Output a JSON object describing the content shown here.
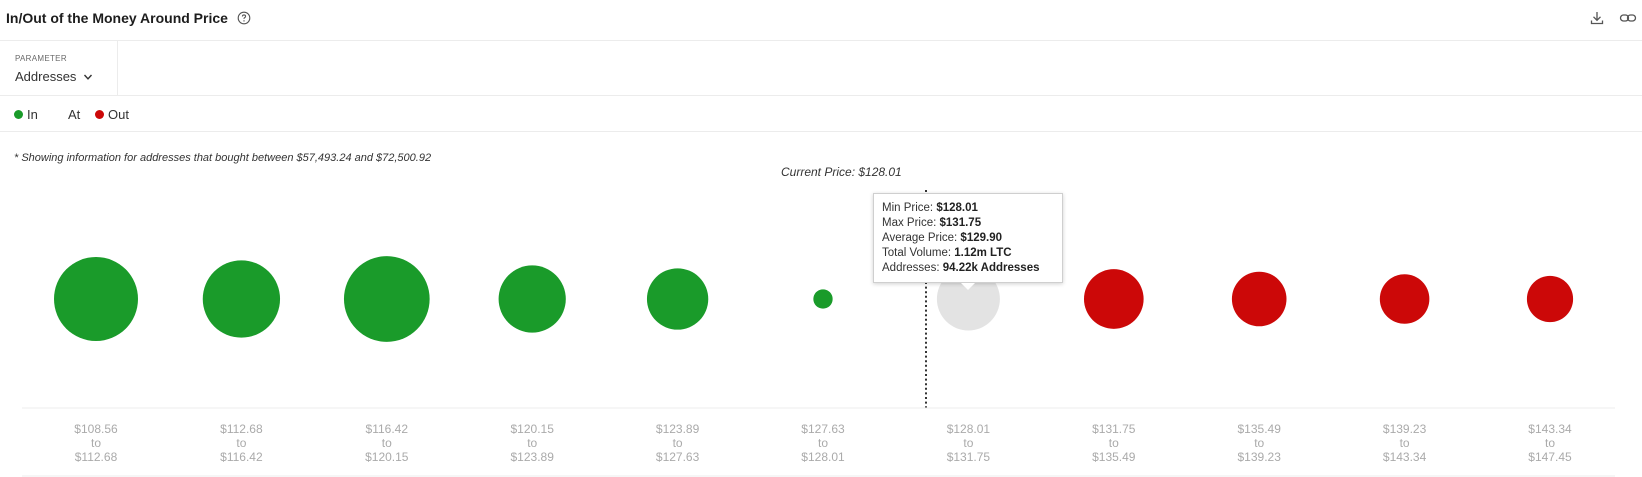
{
  "header": {
    "title": "In/Out of the Money Around Price",
    "help_icon": "question-circle-icon",
    "download_icon": "download-icon",
    "link_icon": "link-icon"
  },
  "parameter": {
    "label": "PARAMETER",
    "selected": "Addresses"
  },
  "legend": [
    {
      "label": "In",
      "color": "#1a9b2a"
    },
    {
      "label": "At",
      "color": ""
    },
    {
      "label": "Out",
      "color": "#cc0808"
    }
  ],
  "note": "* Showing information for addresses that bought between $57,493.24 and $72,500.92",
  "chart_data": {
    "type": "scatter",
    "current_price_label": "Current Price: $128.01",
    "bubbles": [
      {
        "from": "$108.56",
        "to": "$112.68",
        "status": "In"
      },
      {
        "from": "$112.68",
        "to": "$116.42",
        "status": "In"
      },
      {
        "from": "$116.42",
        "to": "$120.15",
        "status": "In"
      },
      {
        "from": "$120.15",
        "to": "$123.89",
        "status": "In"
      },
      {
        "from": "$123.89",
        "to": "$127.63",
        "status": "In"
      },
      {
        "from": "$127.63",
        "to": "$128.01",
        "status": "In"
      },
      {
        "from": "$128.01",
        "to": "$131.75",
        "status": "At"
      },
      {
        "from": "$131.75",
        "to": "$135.49",
        "status": "Out"
      },
      {
        "from": "$135.49",
        "to": "$139.23",
        "status": "Out"
      },
      {
        "from": "$139.23",
        "to": "$143.34",
        "status": "Out"
      },
      {
        "from": "$143.34",
        "to": "$147.45",
        "status": "Out"
      }
    ],
    "relative_size": [
      1.0,
      0.92,
      1.02,
      0.8,
      0.73,
      0.23,
      0.75,
      0.71,
      0.65,
      0.59,
      0.55
    ],
    "colors": {
      "In": "#1a9b2a",
      "At": "#e3e3e3",
      "Out": "#cc0808"
    },
    "range_word": "to"
  },
  "tooltip": {
    "rows": [
      {
        "label": "Min Price: ",
        "value": "$128.01"
      },
      {
        "label": "Max Price: ",
        "value": "$131.75"
      },
      {
        "label": "Average Price: ",
        "value": "$129.90"
      },
      {
        "label": "Total Volume: ",
        "value": "1.12m LTC"
      },
      {
        "label": "Addresses: ",
        "value": "94.22k Addresses"
      }
    ]
  }
}
